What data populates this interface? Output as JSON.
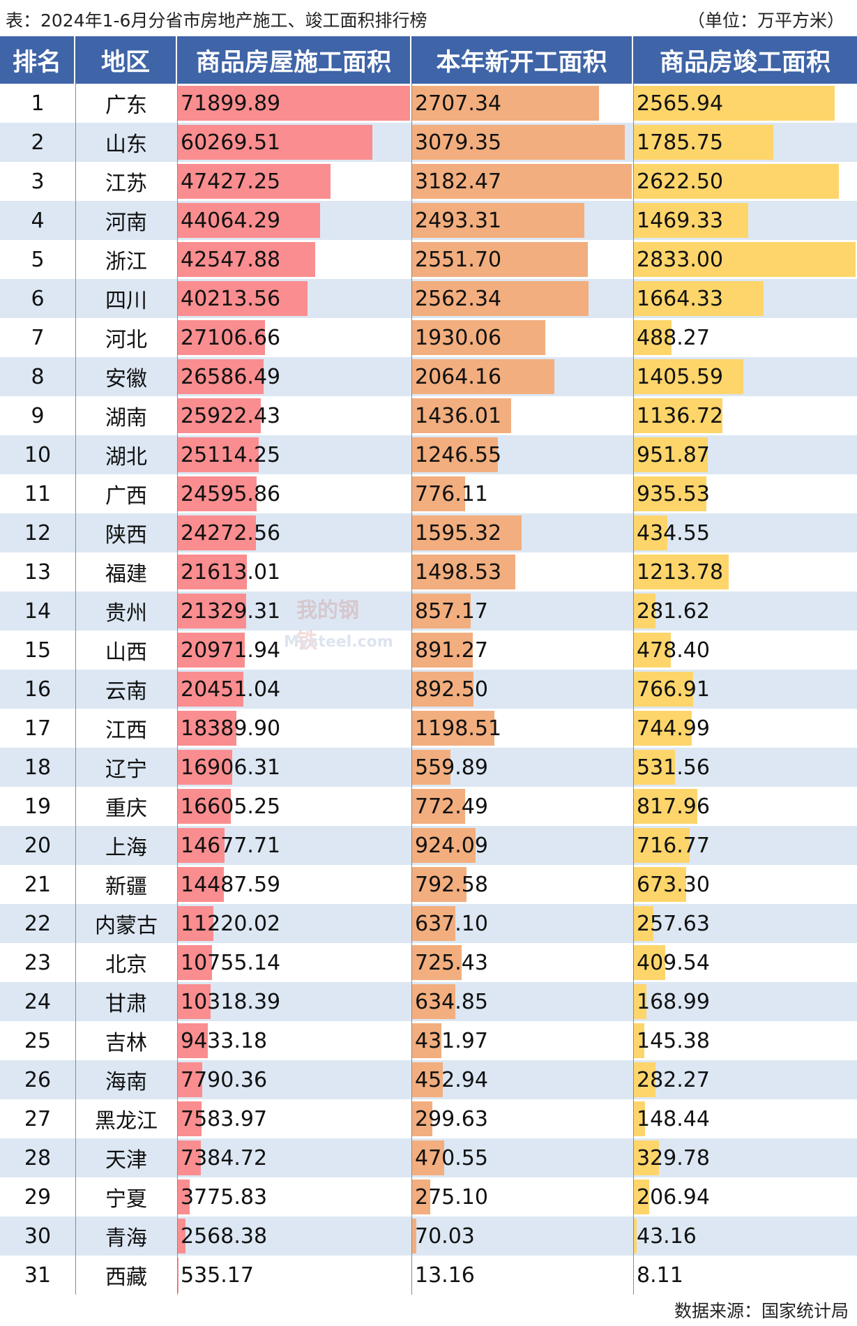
{
  "header": {
    "title": "表：2024年1-6月分省市房地产施工、竣工面积排行榜",
    "unit": "（单位：万平方米）"
  },
  "columns": [
    "排名",
    "地区",
    "商品房屋施工面积",
    "本年新开工面积",
    "商品房竣工面积"
  ],
  "colors": {
    "header_bg": "#3f64a7",
    "bar1": "#fa8d8f",
    "bar2": "#f2ae7e",
    "bar3": "#fdd56a",
    "stripe": "#dce7f3"
  },
  "rows": [
    {
      "rank": "1",
      "region": "广东",
      "c1": "71899.89",
      "c2": "2707.34",
      "c3": "2565.94"
    },
    {
      "rank": "2",
      "region": "山东",
      "c1": "60269.51",
      "c2": "3079.35",
      "c3": "1785.75"
    },
    {
      "rank": "3",
      "region": "江苏",
      "c1": "47427.25",
      "c2": "3182.47",
      "c3": "2622.50"
    },
    {
      "rank": "4",
      "region": "河南",
      "c1": "44064.29",
      "c2": "2493.31",
      "c3": "1469.33"
    },
    {
      "rank": "5",
      "region": "浙江",
      "c1": "42547.88",
      "c2": "2551.70",
      "c3": "2833.00"
    },
    {
      "rank": "6",
      "region": "四川",
      "c1": "40213.56",
      "c2": "2562.34",
      "c3": "1664.33"
    },
    {
      "rank": "7",
      "region": "河北",
      "c1": "27106.66",
      "c2": "1930.06",
      "c3": "488.27"
    },
    {
      "rank": "8",
      "region": "安徽",
      "c1": "26586.49",
      "c2": "2064.16",
      "c3": "1405.59"
    },
    {
      "rank": "9",
      "region": "湖南",
      "c1": "25922.43",
      "c2": "1436.01",
      "c3": "1136.72"
    },
    {
      "rank": "10",
      "region": "湖北",
      "c1": "25114.25",
      "c2": "1246.55",
      "c3": "951.87"
    },
    {
      "rank": "11",
      "region": "广西",
      "c1": "24595.86",
      "c2": "776.11",
      "c3": "935.53"
    },
    {
      "rank": "12",
      "region": "陕西",
      "c1": "24272.56",
      "c2": "1595.32",
      "c3": "434.55"
    },
    {
      "rank": "13",
      "region": "福建",
      "c1": "21613.01",
      "c2": "1498.53",
      "c3": "1213.78"
    },
    {
      "rank": "14",
      "region": "贵州",
      "c1": "21329.31",
      "c2": "857.17",
      "c3": "281.62"
    },
    {
      "rank": "15",
      "region": "山西",
      "c1": "20971.94",
      "c2": "891.27",
      "c3": "478.40"
    },
    {
      "rank": "16",
      "region": "云南",
      "c1": "20451.04",
      "c2": "892.50",
      "c3": "766.91"
    },
    {
      "rank": "17",
      "region": "江西",
      "c1": "18389.90",
      "c2": "1198.51",
      "c3": "744.99"
    },
    {
      "rank": "18",
      "region": "辽宁",
      "c1": "16906.31",
      "c2": "559.89",
      "c3": "531.56"
    },
    {
      "rank": "19",
      "region": "重庆",
      "c1": "16605.25",
      "c2": "772.49",
      "c3": "817.96"
    },
    {
      "rank": "20",
      "region": "上海",
      "c1": "14677.71",
      "c2": "924.09",
      "c3": "716.77"
    },
    {
      "rank": "21",
      "region": "新疆",
      "c1": "14487.59",
      "c2": "792.58",
      "c3": "673.30"
    },
    {
      "rank": "22",
      "region": "内蒙古",
      "c1": "11220.02",
      "c2": "637.10",
      "c3": "257.63"
    },
    {
      "rank": "23",
      "region": "北京",
      "c1": "10755.14",
      "c2": "725.43",
      "c3": "409.54"
    },
    {
      "rank": "24",
      "region": "甘肃",
      "c1": "10318.39",
      "c2": "634.85",
      "c3": "168.99"
    },
    {
      "rank": "25",
      "region": "吉林",
      "c1": "9433.18",
      "c2": "431.97",
      "c3": "145.38"
    },
    {
      "rank": "26",
      "region": "海南",
      "c1": "7790.36",
      "c2": "452.94",
      "c3": "282.27"
    },
    {
      "rank": "27",
      "region": "黑龙江",
      "c1": "7583.97",
      "c2": "299.63",
      "c3": "148.44"
    },
    {
      "rank": "28",
      "region": "天津",
      "c1": "7384.72",
      "c2": "470.55",
      "c3": "329.78"
    },
    {
      "rank": "29",
      "region": "宁夏",
      "c1": "3775.83",
      "c2": "275.10",
      "c3": "206.94"
    },
    {
      "rank": "30",
      "region": "青海",
      "c1": "2568.38",
      "c2": "70.03",
      "c3": "43.16"
    },
    {
      "rank": "31",
      "region": "西藏",
      "c1": "535.17",
      "c2": "13.16",
      "c3": "8.11"
    }
  ],
  "chart_data": {
    "type": "table",
    "title": "表：2024年1-6月分省市房地产施工、竣工面积排行榜",
    "unit": "（单位：万平方米）",
    "categories": [
      "广东",
      "山东",
      "江苏",
      "河南",
      "浙江",
      "四川",
      "河北",
      "安徽",
      "湖南",
      "湖北",
      "广西",
      "陕西",
      "福建",
      "贵州",
      "山西",
      "云南",
      "江西",
      "辽宁",
      "重庆",
      "上海",
      "新疆",
      "内蒙古",
      "北京",
      "甘肃",
      "吉林",
      "海南",
      "黑龙江",
      "天津",
      "宁夏",
      "青海",
      "西藏"
    ],
    "series": [
      {
        "name": "商品房屋施工面积",
        "values": [
          71899.89,
          60269.51,
          47427.25,
          44064.29,
          42547.88,
          40213.56,
          27106.66,
          26586.49,
          25922.43,
          25114.25,
          24595.86,
          24272.56,
          21613.01,
          21329.31,
          20971.94,
          20451.04,
          18389.9,
          16906.31,
          16605.25,
          14677.71,
          14487.59,
          11220.02,
          10755.14,
          10318.39,
          9433.18,
          7790.36,
          7583.97,
          7384.72,
          3775.83,
          2568.38,
          535.17
        ]
      },
      {
        "name": "本年新开工面积",
        "values": [
          2707.34,
          3079.35,
          3182.47,
          2493.31,
          2551.7,
          2562.34,
          1930.06,
          2064.16,
          1436.01,
          1246.55,
          776.11,
          1595.32,
          1498.53,
          857.17,
          891.27,
          892.5,
          1198.51,
          559.89,
          772.49,
          924.09,
          792.58,
          637.1,
          725.43,
          634.85,
          431.97,
          452.94,
          299.63,
          470.55,
          275.1,
          70.03,
          13.16
        ]
      },
      {
        "name": "商品房竣工面积",
        "values": [
          2565.94,
          1785.75,
          2622.5,
          1469.33,
          2833.0,
          1664.33,
          488.27,
          1405.59,
          1136.72,
          951.87,
          935.53,
          434.55,
          1213.78,
          281.62,
          478.4,
          766.91,
          744.99,
          531.56,
          817.96,
          716.77,
          673.3,
          257.63,
          409.54,
          168.99,
          145.38,
          282.27,
          148.44,
          329.78,
          206.94,
          43.16,
          8.11
        ]
      }
    ]
  },
  "footer": {
    "source": "数据来源：国家统计局"
  },
  "watermark": {
    "text1": "我的钢铁",
    "text2": "Mysteel.com"
  }
}
